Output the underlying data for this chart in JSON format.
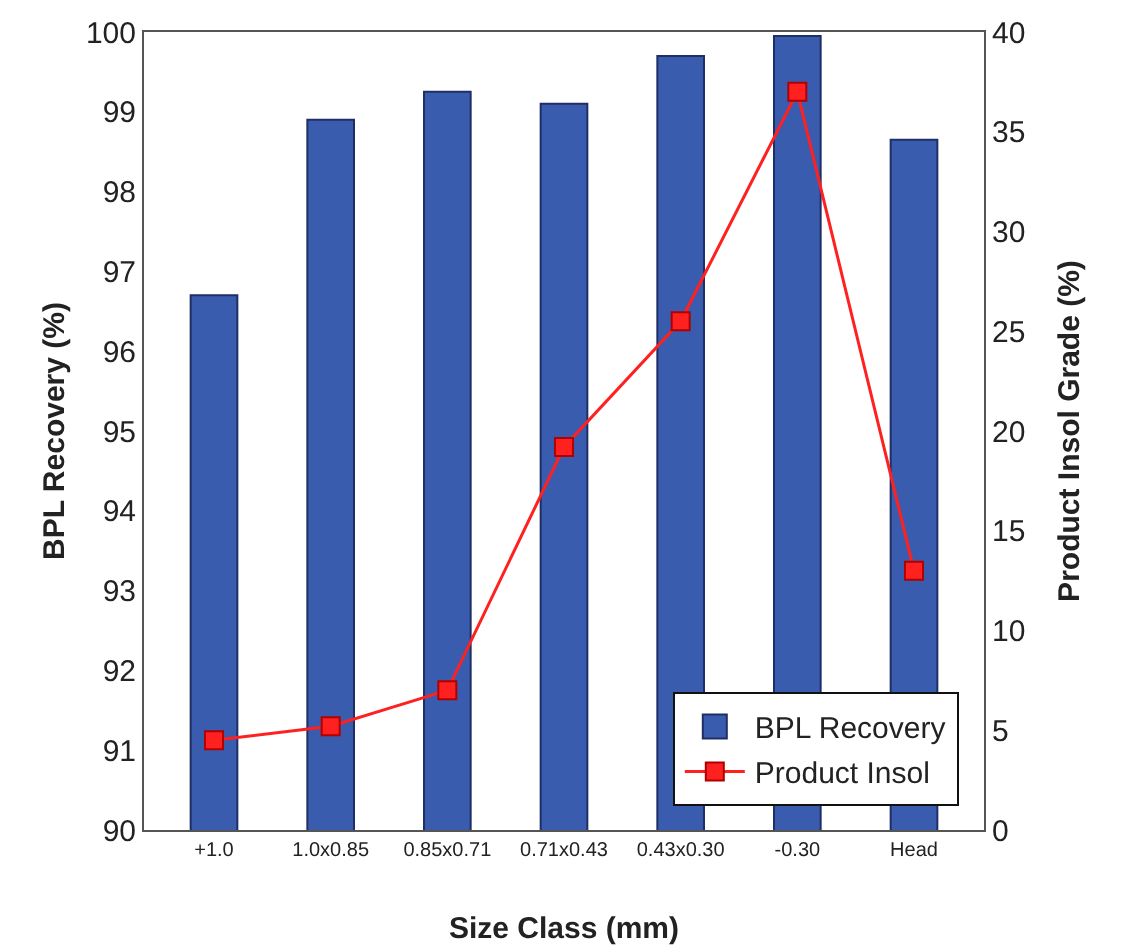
{
  "chart_data": {
    "type": "bar",
    "xlabel": "Size Class (mm)",
    "ylabel": "BPL Recovery (%)",
    "y2label": "Product Insol Grade (%)",
    "categories": [
      "+1.0",
      "1.0x0.85",
      "0.85x0.71",
      "0.71x0.43",
      "0.43x0.30",
      "-0.30",
      "Head"
    ],
    "series": [
      {
        "name": "BPL Recovery",
        "color": "#3a5cae",
        "values": [
          96.7,
          98.9,
          99.25,
          99.1,
          99.7,
          99.95,
          98.65
        ]
      },
      {
        "name": "Product Insol",
        "type": "line",
        "axis": "y2",
        "color": "#ff2020",
        "marker": "square",
        "values": [
          4.5,
          5.2,
          7.0,
          19.2,
          25.5,
          37.0,
          13.0
        ]
      }
    ],
    "ylim": [
      90,
      100
    ],
    "yticks": [
      90,
      91,
      92,
      93,
      94,
      95,
      96,
      97,
      98,
      99,
      100
    ],
    "y2lim": [
      0,
      40
    ],
    "y2ticks": [
      0,
      5,
      10,
      15,
      20,
      25,
      30,
      35,
      40
    ],
    "grid": false,
    "legend": "bottom right"
  }
}
